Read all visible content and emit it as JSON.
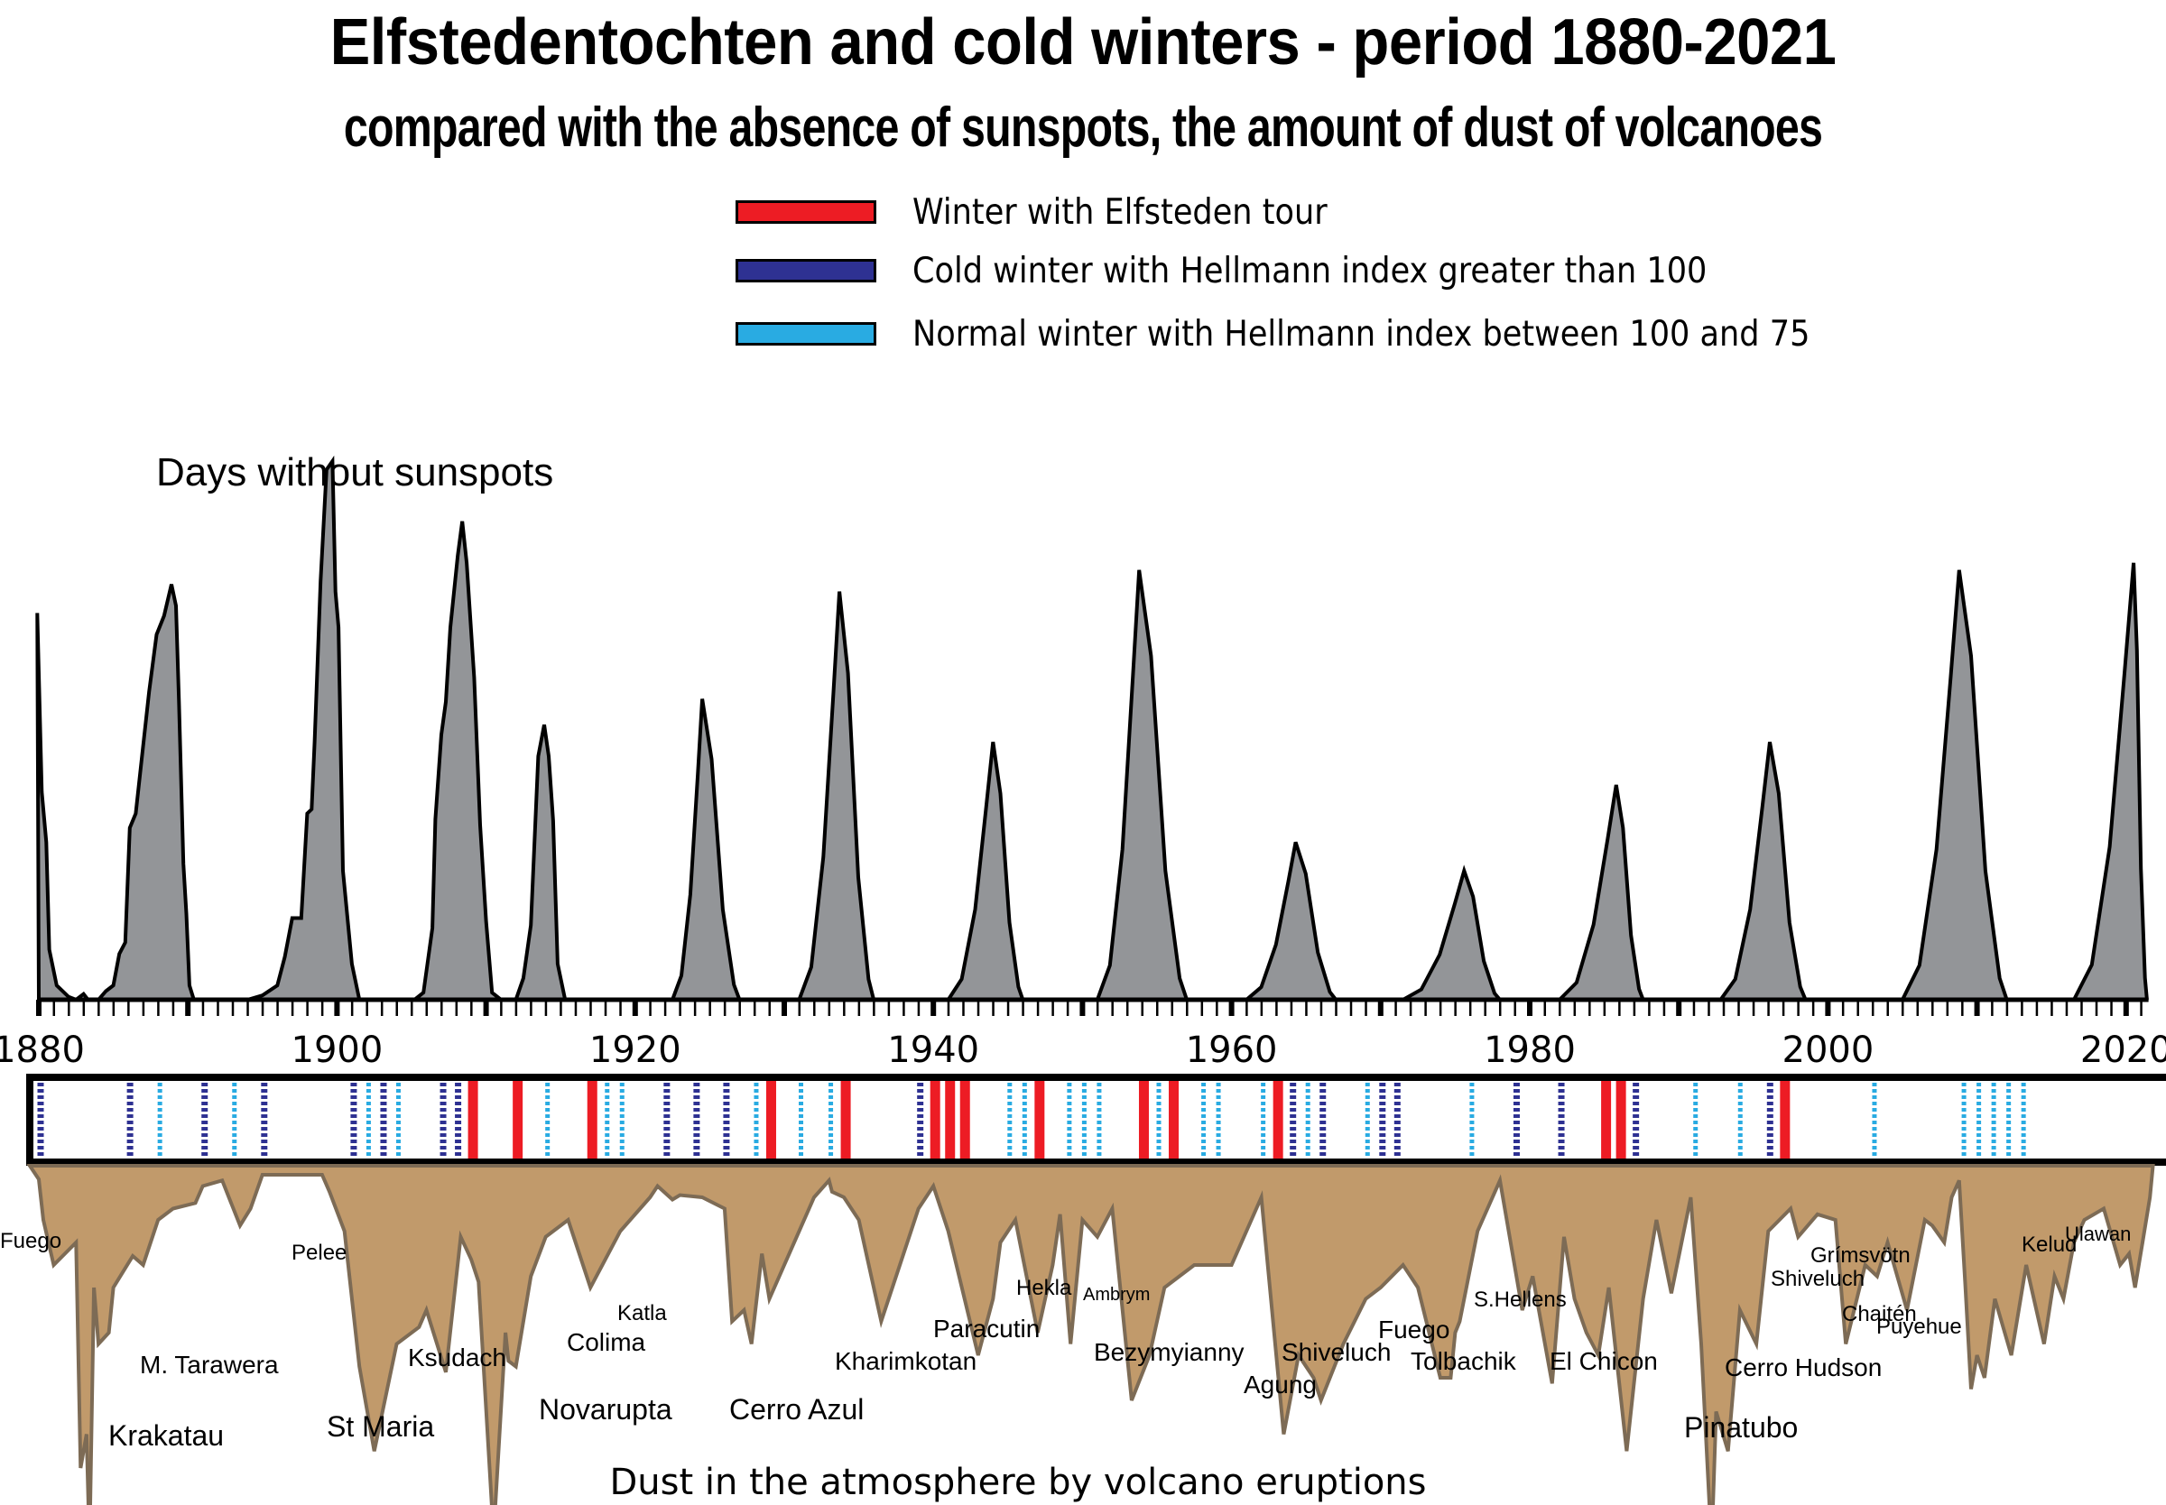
{
  "chart_data": {
    "type": "area",
    "title": "Elfstedentochten and cold winters  - period 1880-2021",
    "subtitle": "compared with the absence of sunspots, the amount of dust of volcanoes",
    "x_range": [
      1880,
      2021
    ],
    "x_ticks": [
      1880,
      1900,
      1920,
      1940,
      1960,
      1980,
      2000,
      2020
    ],
    "legend": [
      {
        "key": "elfsteden",
        "label": "Winter with Elfsteden tour",
        "color": "#ed1c24"
      },
      {
        "key": "cold",
        "label": "Cold winter with Hellmann index greater than 100",
        "color": "#2e3192"
      },
      {
        "key": "normal",
        "label": "Normal winter with Hellmann index between 100 and 75",
        "color": "#29abe2"
      }
    ],
    "legend_position": "top-center",
    "sunspots": {
      "label": "Days without sunspots",
      "fill": "#939598",
      "ylim": [
        0,
        320
      ],
      "points": [
        [
          1879.9,
          270
        ],
        [
          1880.2,
          145
        ],
        [
          1880.5,
          110
        ],
        [
          1880.7,
          35
        ],
        [
          1881.2,
          10
        ],
        [
          1882,
          2
        ],
        [
          1882.5,
          0
        ],
        [
          1883,
          4
        ],
        [
          1883.3,
          0
        ],
        [
          1884,
          0
        ],
        [
          1884.5,
          6
        ],
        [
          1885,
          10
        ],
        [
          1885.4,
          32
        ],
        [
          1885.8,
          40
        ],
        [
          1886.1,
          120
        ],
        [
          1886.5,
          130
        ],
        [
          1886.9,
          168
        ],
        [
          1887.4,
          215
        ],
        [
          1887.9,
          255
        ],
        [
          1888.4,
          268
        ],
        [
          1888.9,
          290
        ],
        [
          1889.2,
          275
        ],
        [
          1889.4,
          208
        ],
        [
          1889.7,
          95
        ],
        [
          1889.9,
          60
        ],
        [
          1890.1,
          10
        ],
        [
          1890.4,
          0
        ],
        [
          1891,
          0
        ],
        [
          1892,
          0
        ],
        [
          1893,
          0
        ],
        [
          1894,
          0
        ],
        [
          1895,
          3
        ],
        [
          1896,
          10
        ],
        [
          1896.5,
          30
        ],
        [
          1897,
          57
        ],
        [
          1897.6,
          57
        ],
        [
          1898,
          130
        ],
        [
          1898.3,
          133
        ],
        [
          1898.5,
          180
        ],
        [
          1898.9,
          292
        ],
        [
          1899.3,
          370
        ],
        [
          1899.7,
          376
        ],
        [
          1899.9,
          285
        ],
        [
          1900.1,
          260
        ],
        [
          1900.4,
          90
        ],
        [
          1901,
          25
        ],
        [
          1901.5,
          0
        ],
        [
          1902.5,
          0
        ],
        [
          1903.5,
          0
        ],
        [
          1904.5,
          0
        ],
        [
          1905.2,
          0
        ],
        [
          1905.8,
          5
        ],
        [
          1906.4,
          50
        ],
        [
          1906.6,
          126
        ],
        [
          1907,
          185
        ],
        [
          1907.3,
          208
        ],
        [
          1907.6,
          260
        ],
        [
          1908.1,
          310
        ],
        [
          1908.4,
          334
        ],
        [
          1908.7,
          305
        ],
        [
          1909.2,
          225
        ],
        [
          1909.6,
          122
        ],
        [
          1910,
          55
        ],
        [
          1910.4,
          5
        ],
        [
          1911,
          0
        ],
        [
          1911.5,
          0
        ],
        [
          1912,
          0
        ],
        [
          1912.5,
          15
        ],
        [
          1913,
          52
        ],
        [
          1913.5,
          170
        ],
        [
          1913.9,
          192
        ],
        [
          1914.2,
          170
        ],
        [
          1914.5,
          125
        ],
        [
          1914.8,
          25
        ],
        [
          1915.3,
          0
        ],
        [
          1917,
          0
        ],
        [
          1918,
          0
        ],
        [
          1919,
          0
        ],
        [
          1919.5,
          0
        ],
        [
          1920,
          0
        ],
        [
          1920.5,
          0
        ],
        [
          1921,
          0
        ]
      ]
    },
    "winters": [
      {
        "year": 1880,
        "type": "cold"
      },
      {
        "year": 1886,
        "type": "cold"
      },
      {
        "year": 1888,
        "type": "normal"
      },
      {
        "year": 1891,
        "type": "cold"
      },
      {
        "year": 1893,
        "type": "normal"
      },
      {
        "year": 1895,
        "type": "cold"
      },
      {
        "year": 1901,
        "type": "cold"
      },
      {
        "year": 1902,
        "type": "normal"
      },
      {
        "year": 1903,
        "type": "cold"
      },
      {
        "year": 1904,
        "type": "normal"
      },
      {
        "year": 1907,
        "type": "cold"
      },
      {
        "year": 1908,
        "type": "cold"
      },
      {
        "year": 1909,
        "type": "elfsteden"
      },
      {
        "year": 1912,
        "type": "elfsteden"
      },
      {
        "year": 1914,
        "type": "normal"
      },
      {
        "year": 1917,
        "type": "elfsteden"
      },
      {
        "year": 1918,
        "type": "normal"
      },
      {
        "year": 1919,
        "type": "normal"
      },
      {
        "year": 1922,
        "type": "cold"
      },
      {
        "year": 1924,
        "type": "cold"
      },
      {
        "year": 1926,
        "type": "cold"
      },
      {
        "year": 1928,
        "type": "normal"
      },
      {
        "year": 1929,
        "type": "elfsteden"
      },
      {
        "year": 1931,
        "type": "normal"
      },
      {
        "year": 1933,
        "type": "normal"
      },
      {
        "year": 1934,
        "type": "elfsteden"
      },
      {
        "year": 1939,
        "type": "cold"
      },
      {
        "year": 1940,
        "type": "elfsteden"
      },
      {
        "year": 1941,
        "type": "elfsteden"
      },
      {
        "year": 1942,
        "type": "elfsteden"
      },
      {
        "year": 1945,
        "type": "normal"
      },
      {
        "year": 1946,
        "type": "normal"
      },
      {
        "year": 1947,
        "type": "elfsteden"
      },
      {
        "year": 1949,
        "type": "normal"
      },
      {
        "year": 1950,
        "type": "normal"
      },
      {
        "year": 1951,
        "type": "normal"
      },
      {
        "year": 1954,
        "type": "elfsteden"
      },
      {
        "year": 1955,
        "type": "normal"
      },
      {
        "year": 1956,
        "type": "elfsteden"
      },
      {
        "year": 1958,
        "type": "normal"
      },
      {
        "year": 1959,
        "type": "normal"
      },
      {
        "year": 1962,
        "type": "normal"
      },
      {
        "year": 1963,
        "type": "elfsteden"
      },
      {
        "year": 1964,
        "type": "cold"
      },
      {
        "year": 1965,
        "type": "normal"
      },
      {
        "year": 1966,
        "type": "cold"
      },
      {
        "year": 1969,
        "type": "normal"
      },
      {
        "year": 1970,
        "type": "cold"
      },
      {
        "year": 1971,
        "type": "cold"
      },
      {
        "year": 1976,
        "type": "normal"
      },
      {
        "year": 1979,
        "type": "cold"
      },
      {
        "year": 1982,
        "type": "cold"
      },
      {
        "year": 1985,
        "type": "elfsteden"
      },
      {
        "year": 1986,
        "type": "elfsteden"
      },
      {
        "year": 1987,
        "type": "cold"
      },
      {
        "year": 1991,
        "type": "normal"
      },
      {
        "year": 1994,
        "type": "normal"
      },
      {
        "year": 1996,
        "type": "cold"
      },
      {
        "year": 1997,
        "type": "elfsteden"
      },
      {
        "year": 2003,
        "type": "normal"
      },
      {
        "year": 2009,
        "type": "normal"
      },
      {
        "year": 2010,
        "type": "normal"
      },
      {
        "year": 2011,
        "type": "normal"
      },
      {
        "year": 2012,
        "type": "normal"
      },
      {
        "year": 2013,
        "type": "normal"
      }
    ],
    "volcanoes": {
      "label": "Dust in the atmosphere by volcano eruptions",
      "fill": "#c19a6b",
      "stroke": "#7d6b55",
      "eruptions": [
        {
          "name": "Fuego",
          "year": 1880
        },
        {
          "name": "Krakatau",
          "year": 1883
        },
        {
          "name": "M. Tarawera",
          "year": 1886
        },
        {
          "name": "Pelee",
          "year": 1902
        },
        {
          "name": "St Maria",
          "year": 1902
        },
        {
          "name": "Ksudach",
          "year": 1907
        },
        {
          "name": "Novarupta",
          "year": 1912
        },
        {
          "name": "Colima",
          "year": 1913
        },
        {
          "name": "Katla",
          "year": 1918
        },
        {
          "name": "Cerro Azul",
          "year": 1932
        },
        {
          "name": "Kharimkotan",
          "year": 1933
        },
        {
          "name": "Paracutin",
          "year": 1943
        },
        {
          "name": "Hekla",
          "year": 1947
        },
        {
          "name": "Ambrym",
          "year": 1951
        },
        {
          "name": "Bezymyianny",
          "year": 1956
        },
        {
          "name": "Agung",
          "year": 1963
        },
        {
          "name": "Shiveluch",
          "year": 1964
        },
        {
          "name": "Fuego",
          "year": 1974
        },
        {
          "name": "Tolbachik",
          "year": 1975
        },
        {
          "name": "S.Hellens",
          "year": 1980
        },
        {
          "name": "El Chicon",
          "year": 1982
        },
        {
          "name": "Pinatubo",
          "year": 1991
        },
        {
          "name": "Cerro Hudson",
          "year": 1991
        },
        {
          "name": "Shiveluch",
          "year": 2001
        },
        {
          "name": "Grímsvötn",
          "year": 2004
        },
        {
          "name": "Chaitén",
          "year": 2008
        },
        {
          "name": "Puyehue",
          "year": 2011
        },
        {
          "name": "Kelud",
          "year": 2014
        },
        {
          "name": "Ulawan",
          "year": 2019
        }
      ]
    }
  }
}
